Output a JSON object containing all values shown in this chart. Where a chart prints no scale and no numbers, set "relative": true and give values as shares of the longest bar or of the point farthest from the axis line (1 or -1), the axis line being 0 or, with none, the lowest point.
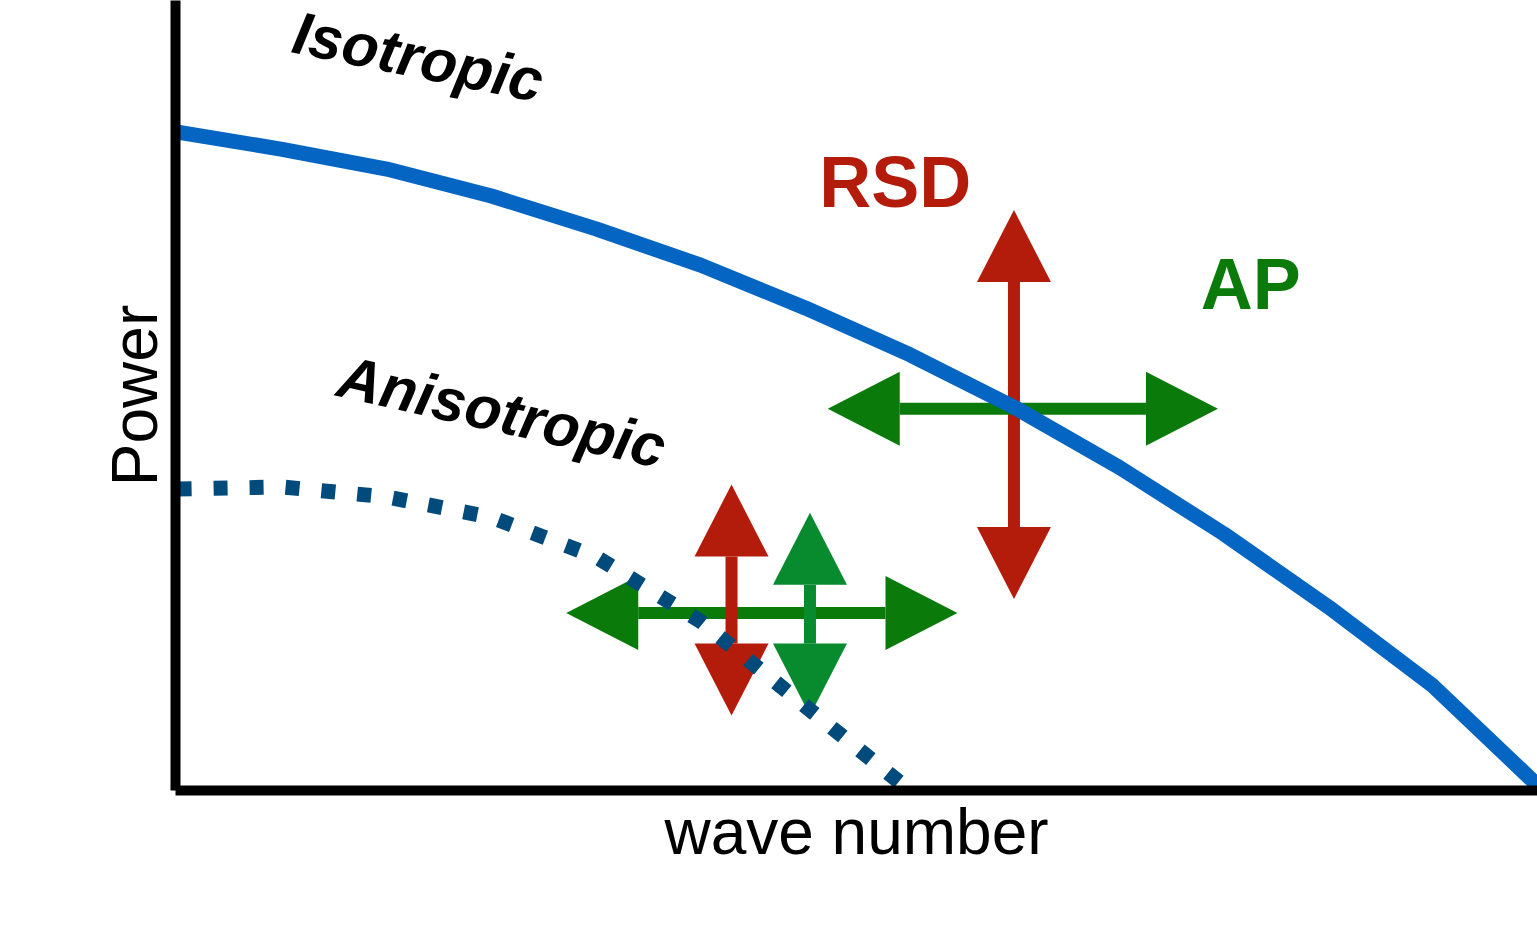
{
  "chart_data": {
    "type": "line",
    "relative": true,
    "xlabel": "wave number",
    "ylabel": "Power",
    "categories": [
      null,
      null,
      null,
      null,
      null,
      null,
      null,
      null,
      null,
      null,
      null,
      null,
      null,
      null
    ],
    "series": [
      {
        "name": "Isotropic",
        "color": "#0565c2",
        "line_style": "solid",
        "values": [
          1.0,
          0.974,
          0.944,
          0.903,
          0.853,
          0.798,
          0.733,
          0.662,
          0.582,
          0.491,
          0.39,
          0.279,
          0.159,
          0.008
        ]
      },
      {
        "name": "Anisotropic",
        "color": "#004b7c",
        "line_style": "dotted",
        "values": [
          0.458,
          0.461,
          0.446,
          0.415,
          0.355,
          0.257,
          0.128,
          0.0,
          null,
          null,
          null,
          null,
          null,
          null
        ]
      }
    ],
    "annotations": [
      "RSD",
      "AP"
    ]
  }
}
